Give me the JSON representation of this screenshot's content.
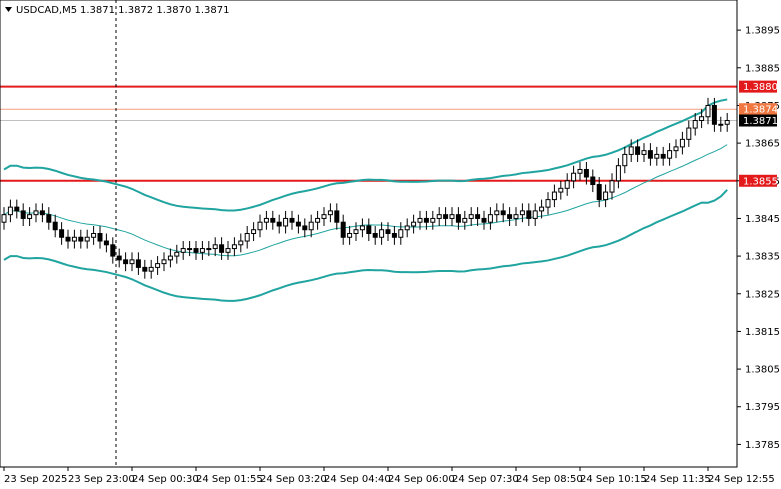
{
  "chart_data": {
    "type": "candlestick",
    "symbol_label": "USDCAD,M5",
    "ohlc_label": "1.3871 1.3872 1.3870 1.3871",
    "y_ticks": [
      "1.3895",
      "1.3885",
      "1.3875",
      "1.3865",
      "1.3855",
      "1.3845",
      "1.3835",
      "1.3825",
      "1.3815",
      "1.3805",
      "1.3795",
      "1.3785"
    ],
    "y_tick_values": [
      1.3895,
      1.3885,
      1.3875,
      1.3865,
      1.3855,
      1.3845,
      1.3835,
      1.3825,
      1.3815,
      1.3805,
      1.3795,
      1.3785
    ],
    "ylim": [
      1.3779,
      1.3903
    ],
    "x_ticks": [
      "23 Sep 2025",
      "23 Sep 23:00",
      "24 Sep 00:30",
      "24 Sep 01:55",
      "24 Sep 03:20",
      "24 Sep 04:40",
      "24 Sep 06:00",
      "24 Sep 07:30",
      "24 Sep 08:50",
      "24 Sep 10:15",
      "24 Sep 11:35",
      "24 Sep 12:55"
    ],
    "levels": [
      {
        "label": "1.3880",
        "value": 1.388,
        "color": "#e31a1c",
        "style": "solid",
        "tag_color": "#e31a1c"
      },
      {
        "label": "1.3874",
        "value": 1.3874,
        "color": "#f0a080",
        "style": "solid",
        "tag_color": "#f07840"
      },
      {
        "label": "1.3871",
        "value": 1.3871,
        "color": "#c0c0c0",
        "style": "solid",
        "tag_color": "#000000"
      },
      {
        "label": "1.3855",
        "value": 1.3855,
        "color": "#e31a1c",
        "style": "solid",
        "tag_color": "#e31a1c"
      }
    ],
    "close": [
      1.3846,
      1.3848,
      1.3847,
      1.3845,
      1.3846,
      1.3847,
      1.3846,
      1.3844,
      1.3842,
      1.384,
      1.3839,
      1.384,
      1.3839,
      1.384,
      1.3841,
      1.3839,
      1.3838,
      1.3835,
      1.3834,
      1.3833,
      1.3834,
      1.3832,
      1.3831,
      1.3832,
      1.3833,
      1.3834,
      1.3835,
      1.3836,
      1.3837,
      1.3837,
      1.3836,
      1.3837,
      1.3837,
      1.3838,
      1.3836,
      1.3837,
      1.3838,
      1.3839,
      1.3841,
      1.3842,
      1.3844,
      1.3845,
      1.3844,
      1.3843,
      1.3845,
      1.3844,
      1.3843,
      1.3842,
      1.3844,
      1.3845,
      1.3846,
      1.3847,
      1.3844,
      1.384,
      1.3841,
      1.3842,
      1.3843,
      1.3841,
      1.384,
      1.3842,
      1.3841,
      1.384,
      1.3842,
      1.3843,
      1.3844,
      1.3845,
      1.3844,
      1.3845,
      1.3846,
      1.3845,
      1.3846,
      1.3844,
      1.3845,
      1.3846,
      1.3845,
      1.3844,
      1.3846,
      1.3847,
      1.3846,
      1.3845,
      1.3846,
      1.3847,
      1.3845,
      1.3847,
      1.3848,
      1.385,
      1.3852,
      1.3853,
      1.3855,
      1.3857,
      1.3858,
      1.3856,
      1.3854,
      1.385,
      1.3852,
      1.3855,
      1.3859,
      1.3862,
      1.3864,
      1.3862,
      1.3863,
      1.3861,
      1.3862,
      1.3861,
      1.3863,
      1.3864,
      1.3866,
      1.3869,
      1.3871,
      1.3872,
      1.3875,
      1.387,
      1.387,
      1.3871
    ]
  },
  "x_tick_indices": [
    0,
    10,
    20,
    30,
    40,
    50,
    60,
    70,
    80,
    90,
    100,
    110
  ]
}
